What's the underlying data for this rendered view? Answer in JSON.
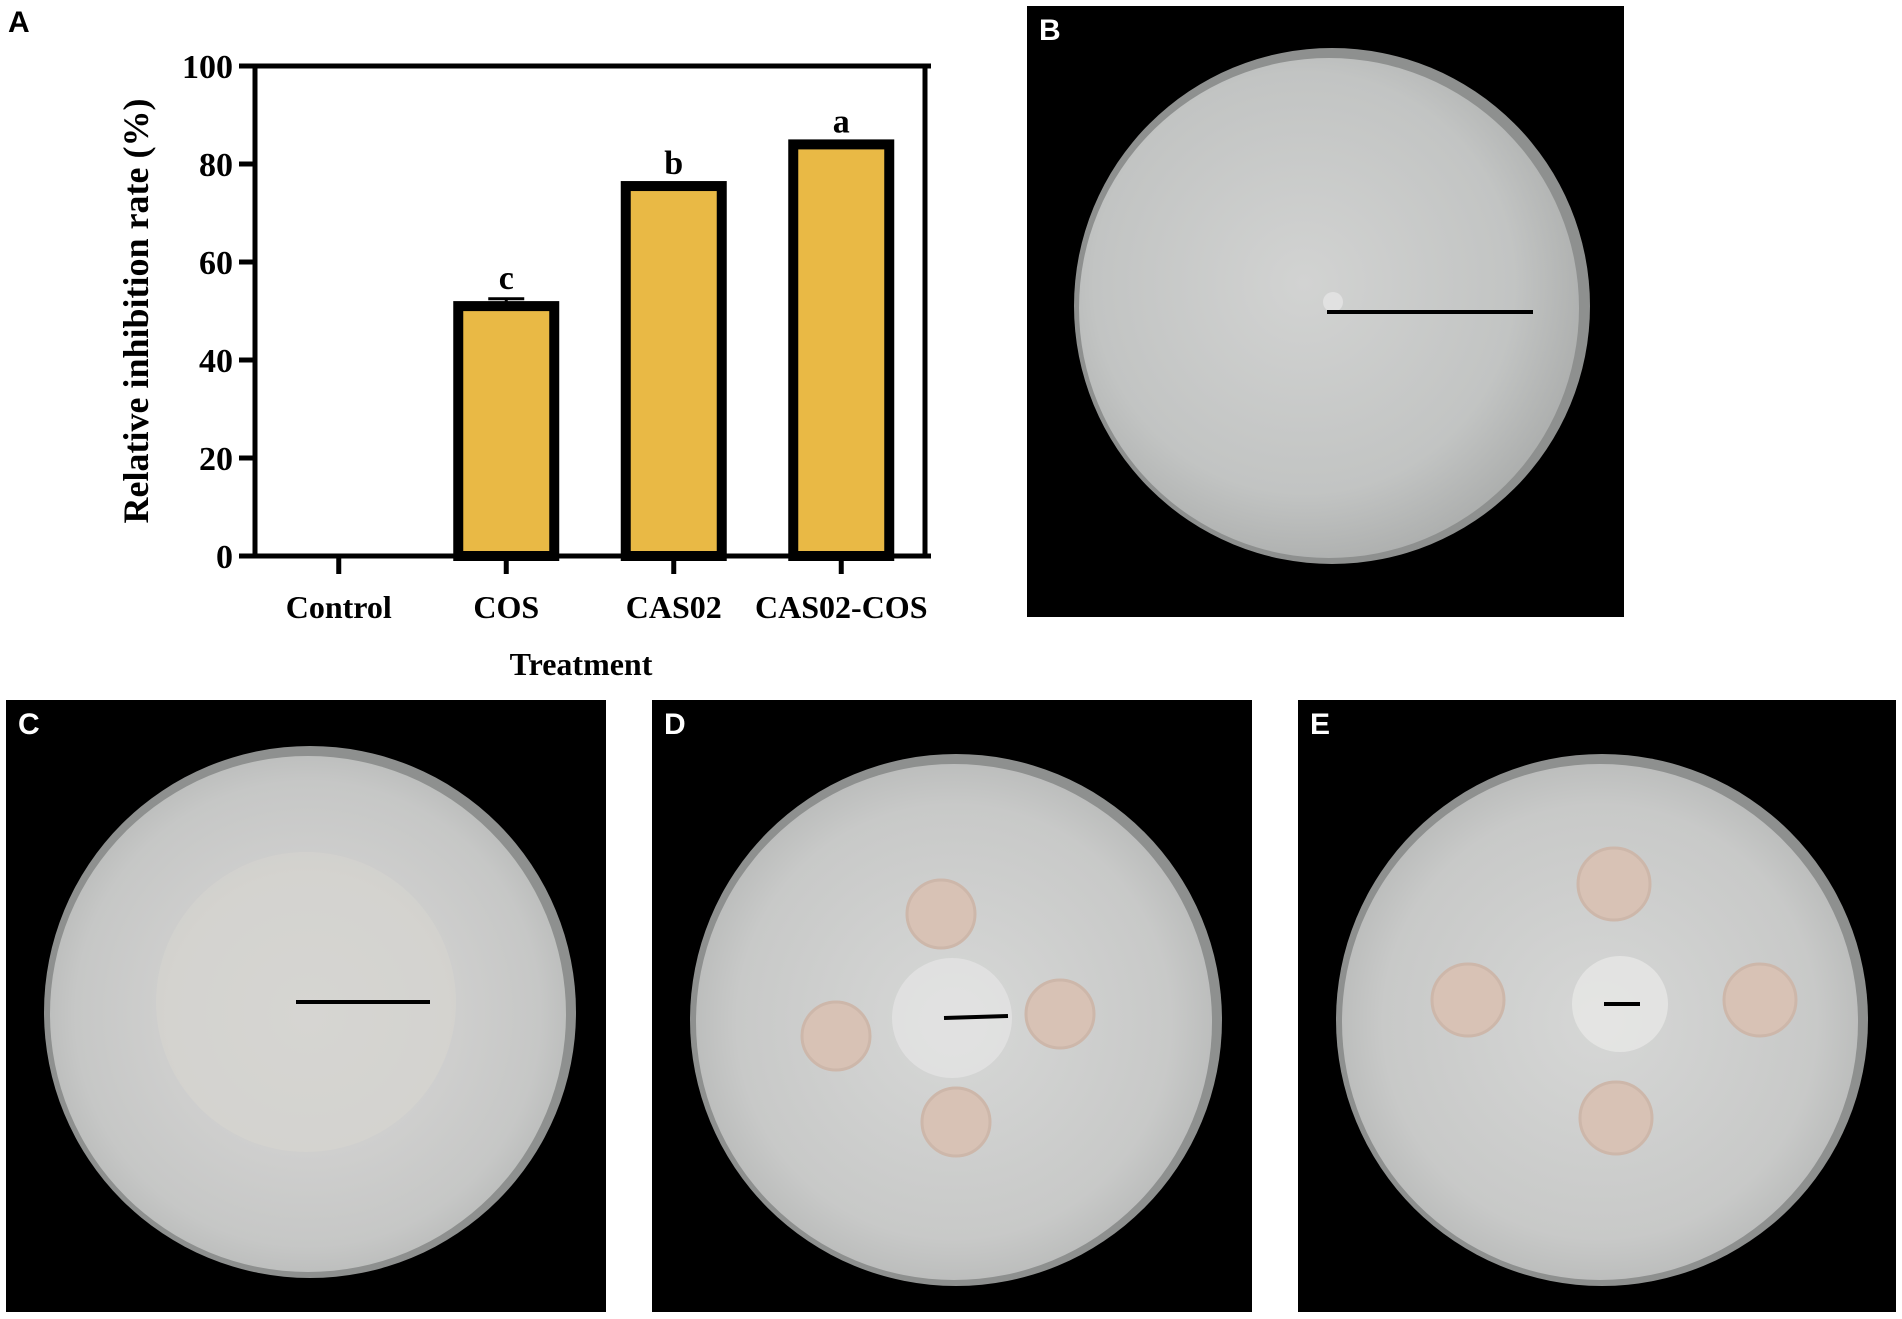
{
  "panels": {
    "a": "A",
    "b": "B",
    "c": "C",
    "d": "D",
    "e": "E"
  },
  "colors": {
    "bar_fill": "#E9B945",
    "bar_stroke": "#000000",
    "photo_background": "#000000",
    "agar": "#C9CBCA",
    "colony": "#D8C2B5"
  },
  "chart_data": {
    "type": "bar",
    "title": "",
    "xlabel": "Treatment",
    "ylabel": "Relative inhibition rate (%)",
    "ylim": [
      0,
      100
    ],
    "yticks": [
      0,
      20,
      40,
      60,
      80,
      100
    ],
    "categories": [
      "Control",
      "COS",
      "CAS02",
      "CAS02-COS"
    ],
    "values": [
      0,
      51,
      75.5,
      84
    ],
    "errors": [
      0,
      1.5,
      0.3,
      0.2
    ],
    "significance": [
      "",
      "c",
      "b",
      "a"
    ],
    "grid": false,
    "legend": "none"
  },
  "photos": {
    "b": {
      "colony_disks": 0,
      "growth_extent": 1.0
    },
    "c": {
      "colony_disks": 0,
      "growth_extent": 0.5
    },
    "d": {
      "colony_disks": 4,
      "growth_extent": 0.25
    },
    "e": {
      "colony_disks": 4,
      "growth_extent": 0.13
    }
  }
}
